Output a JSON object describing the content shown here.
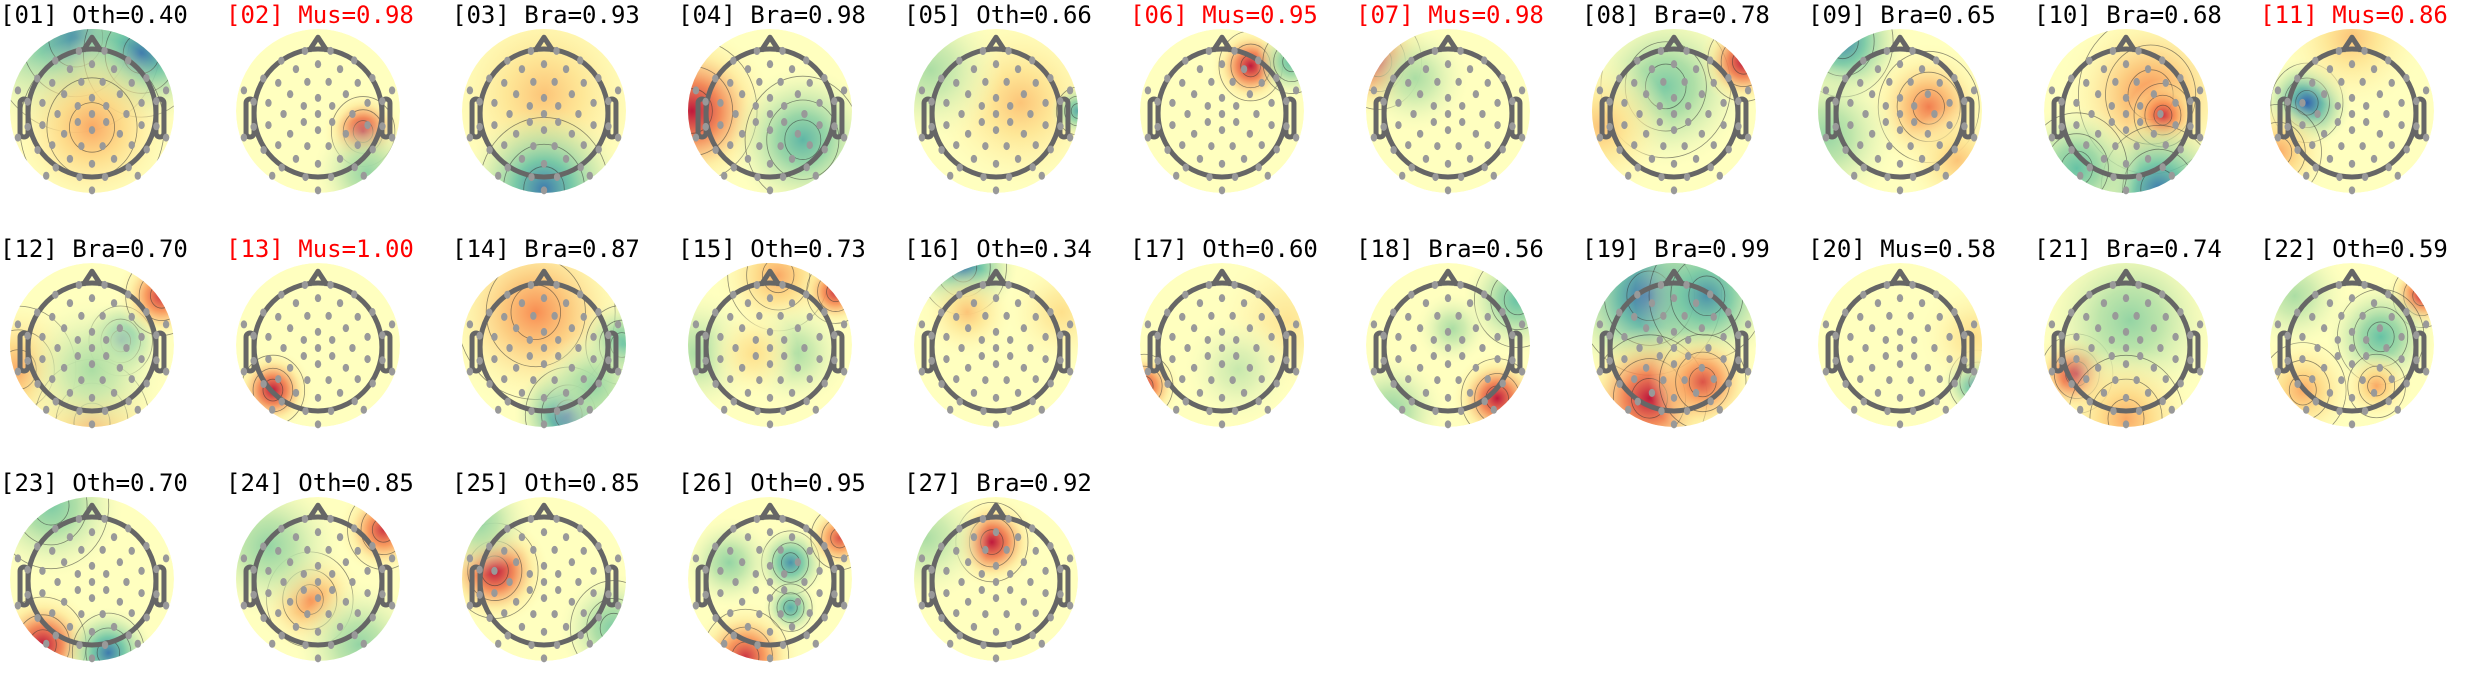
{
  "chart_data": {
    "type": "heatmap",
    "colormap": "spectral (blue negative, yellow zero, red positive)",
    "colors": {
      "highlight_label": "#ff0000",
      "normal_label": "#000000",
      "head_outline": "#666666",
      "electrode": "#999999"
    },
    "components": [
      {
        "title": "[01] Oth=0.40",
        "color": "#000000",
        "sources": [
          [
            -0.2,
            -0.9,
            -0.8,
            0.6
          ],
          [
            0.6,
            -0.7,
            -0.9,
            0.4
          ],
          [
            0,
            0.2,
            0.5,
            0.5
          ]
        ]
      },
      {
        "title": "[02] Mus=0.98",
        "color": "#ff0000",
        "sources": [
          [
            0.55,
            0.25,
            1,
            0.22
          ],
          [
            0.6,
            0.75,
            -0.4,
            0.3
          ]
        ]
      },
      {
        "title": "[03] Bra=0.93",
        "color": "#000000",
        "sources": [
          [
            0,
            -0.2,
            0.4,
            0.6
          ],
          [
            0,
            0.95,
            -0.9,
            0.45
          ]
        ]
      },
      {
        "title": "[04] Bra=0.98",
        "color": "#000000",
        "sources": [
          [
            -0.95,
            0,
            1,
            0.45
          ],
          [
            0.4,
            0.35,
            -0.65,
            0.4
          ]
        ]
      },
      {
        "title": "[05] Oth=0.66",
        "color": "#000000",
        "sources": [
          [
            0.3,
            -0.1,
            0.4,
            0.5
          ],
          [
            1,
            0,
            -0.7,
            0.15
          ],
          [
            -0.8,
            -0.5,
            -0.3,
            0.4
          ]
        ]
      },
      {
        "title": "[06] Mus=0.95",
        "color": "#ff0000",
        "sources": [
          [
            0.35,
            -0.55,
            1,
            0.22
          ],
          [
            0.85,
            -0.6,
            -0.6,
            0.2
          ]
        ]
      },
      {
        "title": "[07] Mus=0.98",
        "color": "#ff0000",
        "sources": [
          [
            -0.85,
            -0.6,
            1,
            0.3
          ],
          [
            -0.4,
            -0.4,
            -0.3,
            0.3
          ]
        ]
      },
      {
        "title": "[08] Bra=0.78",
        "color": "#000000",
        "sources": [
          [
            -0.1,
            -0.3,
            -0.5,
            0.45
          ],
          [
            0.85,
            -0.6,
            1,
            0.25
          ],
          [
            -0.9,
            0.2,
            0.4,
            0.4
          ]
        ]
      },
      {
        "title": "[09] Bra=0.65",
        "color": "#000000",
        "sources": [
          [
            -0.7,
            -0.85,
            -0.85,
            0.35
          ],
          [
            0.35,
            -0.05,
            0.65,
            0.35
          ],
          [
            -0.9,
            0.3,
            -0.4,
            0.4
          ],
          [
            0.7,
            0.6,
            0.4,
            0.3
          ]
        ]
      },
      {
        "title": "[10] Bra=0.68",
        "color": "#000000",
        "sources": [
          [
            0.3,
            -0.2,
            0.6,
            0.5
          ],
          [
            0.45,
            0.05,
            0.9,
            0.2
          ],
          [
            0.4,
            0.95,
            -0.9,
            0.4
          ],
          [
            -0.6,
            0.7,
            -0.6,
            0.35
          ]
        ]
      },
      {
        "title": "[11] Mus=0.86",
        "color": "#ff0000",
        "sources": [
          [
            -0.55,
            -0.1,
            -1,
            0.25
          ],
          [
            -0.9,
            0.5,
            0.5,
            0.3
          ],
          [
            0,
            -0.9,
            0.4,
            0.4
          ]
        ]
      },
      {
        "title": "[12] Bra=0.70",
        "color": "#000000",
        "sources": [
          [
            0.35,
            -0.05,
            -0.9,
            0.22
          ],
          [
            -0.9,
            0.3,
            0.5,
            0.4
          ],
          [
            0,
            0.95,
            0.5,
            0.4
          ],
          [
            0.85,
            -0.6,
            0.9,
            0.25
          ],
          [
            0,
            0.3,
            -0.3,
            0.4
          ]
        ]
      },
      {
        "title": "[13] Mus=1.00",
        "color": "#ff0000",
        "sources": [
          [
            -0.55,
            0.55,
            1,
            0.22
          ]
        ]
      },
      {
        "title": "[14] Bra=0.87",
        "color": "#000000",
        "sources": [
          [
            -0.1,
            -0.4,
            0.6,
            0.55
          ],
          [
            0.3,
            0.85,
            -1,
            0.3
          ],
          [
            0.95,
            0,
            -0.6,
            0.25
          ],
          [
            0.6,
            0.5,
            -0.4,
            0.3
          ]
        ]
      },
      {
        "title": "[15] Oth=0.73",
        "color": "#000000",
        "sources": [
          [
            0.1,
            -0.85,
            0.5,
            0.35
          ],
          [
            0.8,
            -0.65,
            0.9,
            0.2
          ],
          [
            -0.9,
            0.1,
            -0.3,
            0.35
          ],
          [
            0.3,
            0.1,
            -0.3,
            0.3
          ],
          [
            -0.2,
            0.1,
            0.3,
            0.25
          ]
        ]
      },
      {
        "title": "[16] Oth=0.34",
        "color": "#000000",
        "sources": [
          [
            -0.4,
            -0.95,
            -0.9,
            0.3
          ],
          [
            -0.35,
            -0.4,
            0.4,
            0.25
          ],
          [
            0.8,
            -0.4,
            0.3,
            0.3
          ]
        ]
      },
      {
        "title": "[17] Oth=0.60",
        "color": "#000000",
        "sources": [
          [
            -0.95,
            0.5,
            0.9,
            0.2
          ],
          [
            0.8,
            -0.3,
            0.25,
            0.4
          ],
          [
            0.2,
            0.3,
            -0.2,
            0.3
          ]
        ]
      },
      {
        "title": "[18] Bra=0.56",
        "color": "#000000",
        "sources": [
          [
            0.6,
            0.65,
            1,
            0.25
          ],
          [
            0.85,
            -0.55,
            -0.6,
            0.3
          ],
          [
            0.05,
            -0.2,
            -0.3,
            0.2
          ],
          [
            -0.7,
            0.8,
            -0.4,
            0.3
          ]
        ]
      },
      {
        "title": "[19] Bra=0.99",
        "color": "#000000",
        "sources": [
          [
            -0.3,
            -0.6,
            -1,
            0.5
          ],
          [
            0.4,
            -0.6,
            -0.8,
            0.4
          ],
          [
            -0.3,
            0.65,
            1,
            0.4
          ],
          [
            0.35,
            0.45,
            0.8,
            0.3
          ]
        ]
      },
      {
        "title": "[20] Mus=0.58",
        "color": "#000000",
        "sources": [
          [
            0.95,
            0.45,
            -0.85,
            0.2
          ],
          [
            0.9,
            -0.1,
            0.3,
            0.3
          ]
        ]
      },
      {
        "title": "[21] Bra=0.74",
        "color": "#000000",
        "sources": [
          [
            -0.6,
            0.35,
            1,
            0.25
          ],
          [
            0.05,
            -0.3,
            -0.4,
            0.5
          ],
          [
            0,
            0.9,
            0.5,
            0.4
          ]
        ]
      },
      {
        "title": "[22] Oth=0.59",
        "color": "#000000",
        "sources": [
          [
            0.85,
            -0.6,
            0.9,
            0.2
          ],
          [
            0.35,
            -0.1,
            -0.6,
            0.3
          ],
          [
            -0.6,
            0.55,
            0.5,
            0.3
          ],
          [
            0.3,
            0.5,
            0.5,
            0.2
          ],
          [
            -0.7,
            -0.6,
            -0.3,
            0.3
          ]
        ]
      },
      {
        "title": "[23] Oth=0.70",
        "color": "#000000",
        "sources": [
          [
            -0.5,
            -0.9,
            -0.5,
            0.4
          ],
          [
            -0.6,
            0.8,
            1,
            0.3
          ],
          [
            0.2,
            0.9,
            -0.9,
            0.25
          ]
        ]
      },
      {
        "title": "[24] Oth=0.85",
        "color": "#000000",
        "sources": [
          [
            0.8,
            -0.6,
            0.9,
            0.25
          ],
          [
            -0.1,
            0.25,
            0.6,
            0.3
          ],
          [
            -0.6,
            -0.4,
            -0.4,
            0.4
          ],
          [
            0.5,
            0.8,
            -0.4,
            0.35
          ]
        ]
      },
      {
        "title": "[25] Oth=0.85",
        "color": "#000000",
        "sources": [
          [
            -0.6,
            -0.1,
            1,
            0.3
          ],
          [
            -0.8,
            -0.7,
            -0.4,
            0.3
          ],
          [
            0.85,
            0.6,
            -0.5,
            0.3
          ]
        ]
      },
      {
        "title": "[26] Oth=0.95",
        "color": "#000000",
        "sources": [
          [
            0.25,
            -0.2,
            -0.8,
            0.2
          ],
          [
            0.25,
            0.35,
            -0.7,
            0.15
          ],
          [
            0.85,
            -0.5,
            0.8,
            0.2
          ],
          [
            -0.3,
            0.95,
            0.9,
            0.3
          ],
          [
            -0.5,
            -0.2,
            -0.4,
            0.25
          ]
        ]
      },
      {
        "title": "[27] Bra=0.92",
        "color": "#000000",
        "sources": [
          [
            -0.05,
            -0.45,
            1,
            0.25
          ],
          [
            -0.85,
            -0.5,
            -0.3,
            0.35
          ]
        ]
      }
    ]
  }
}
